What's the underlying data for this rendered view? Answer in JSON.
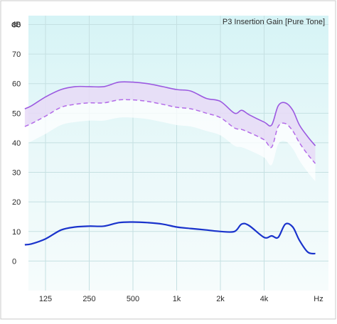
{
  "chart_data": {
    "type": "line",
    "title": "P3 Insertion Gain [Pure Tone]",
    "ylabel": "dB",
    "xlabel": "Hz",
    "ylim": [
      -10,
      83
    ],
    "y_ticks": [
      "80",
      "70",
      "60",
      "50",
      "40",
      "30",
      "20",
      "10",
      "0"
    ],
    "x_ticks": [
      "125",
      "250",
      "500",
      "1k",
      "2k",
      "4k",
      "Hz"
    ],
    "grid": true,
    "x": [
      90,
      100,
      125,
      160,
      200,
      250,
      315,
      400,
      500,
      630,
      800,
      1000,
      1250,
      1600,
      2000,
      2500,
      2800,
      3150,
      4000,
      4500,
      5000,
      5600,
      6300,
      7000,
      8000,
      9000
    ],
    "series": [
      {
        "values": [
          51.5,
          52.5,
          55.5,
          58.0,
          59.0,
          59.0,
          59.0,
          60.5,
          60.5,
          60.0,
          59.0,
          58.0,
          57.5,
          55.0,
          54.0,
          50.0,
          51.0,
          49.5,
          47.0,
          46.0,
          52.5,
          53.5,
          51.0,
          46.0,
          42.0,
          39.0
        ],
        "color": "#9b59e0",
        "style": "solid"
      },
      {
        "values": [
          45.5,
          46.5,
          49.0,
          52.0,
          53.0,
          53.5,
          53.5,
          54.5,
          54.5,
          54.0,
          53.0,
          52.0,
          51.5,
          50.0,
          48.5,
          45.0,
          44.5,
          43.5,
          41.0,
          38.5,
          45.5,
          46.5,
          44.0,
          40.0,
          36.0,
          33.0
        ],
        "color": "#b36be8",
        "style": "dashed"
      },
      {
        "values": [
          5.5,
          5.8,
          7.5,
          10.5,
          11.5,
          11.8,
          11.8,
          13.0,
          13.2,
          13.0,
          12.5,
          11.5,
          11.0,
          10.5,
          10.0,
          10.0,
          12.5,
          12.0,
          8.0,
          8.5,
          8.0,
          12.5,
          11.5,
          7.0,
          3.0,
          2.5
        ],
        "color": "#1a33cc",
        "style": "solid"
      }
    ]
  }
}
